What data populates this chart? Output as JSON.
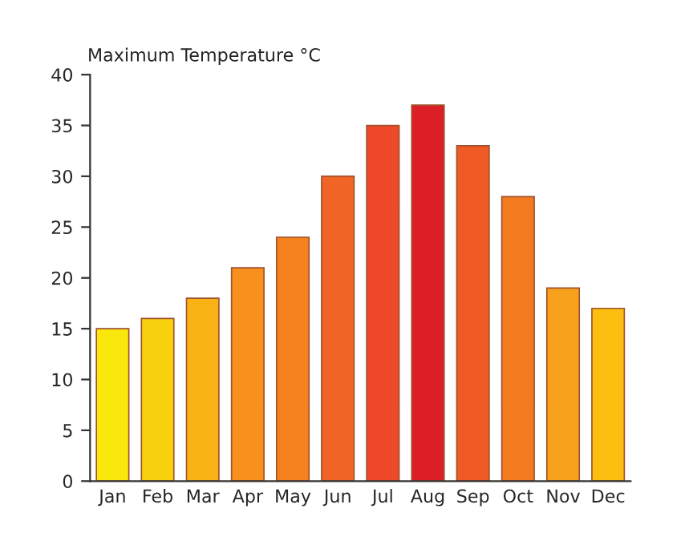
{
  "chart_data": {
    "type": "bar",
    "title": "Maximum Temperature °C",
    "categories": [
      "Jan",
      "Feb",
      "Mar",
      "Apr",
      "May",
      "Jun",
      "Jul",
      "Aug",
      "Sep",
      "Oct",
      "Nov",
      "Dec"
    ],
    "values": [
      15,
      16,
      18,
      21,
      24,
      30,
      35,
      37,
      33,
      28,
      19,
      17
    ],
    "colors": [
      "#fae70c",
      "#f7d00e",
      "#f8b214",
      "#f7901c",
      "#f5821f",
      "#f06525",
      "#ee4a2a",
      "#dc1e26",
      "#f05a24",
      "#f27b20",
      "#f7a11c",
      "#fabd10"
    ],
    "ylim": [
      0,
      40
    ],
    "yticks": [
      0,
      5,
      10,
      15,
      20,
      25,
      30,
      35,
      40
    ],
    "grid": false,
    "legend": false
  }
}
